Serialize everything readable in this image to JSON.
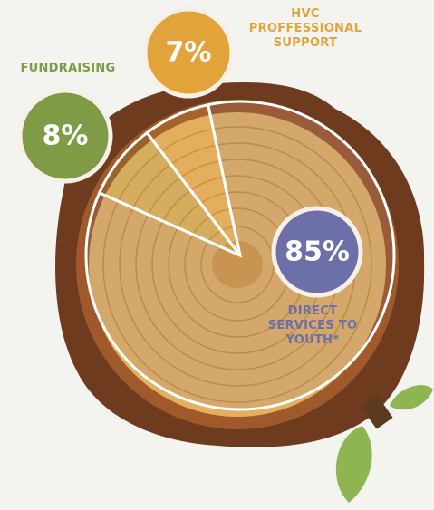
{
  "chart_data": {
    "type": "pie",
    "categories": [
      "DIRECT SERVICES TO YOUTH*",
      "FUNDRAISING",
      "HVC PROFFESSIONAL SUPPORT"
    ],
    "values": [
      85,
      8,
      7
    ],
    "value_labels": [
      "85%",
      "8%",
      "7%"
    ],
    "colors": [
      "#6d6fa9",
      "#7f9b46",
      "#e3a33b"
    ]
  }
}
